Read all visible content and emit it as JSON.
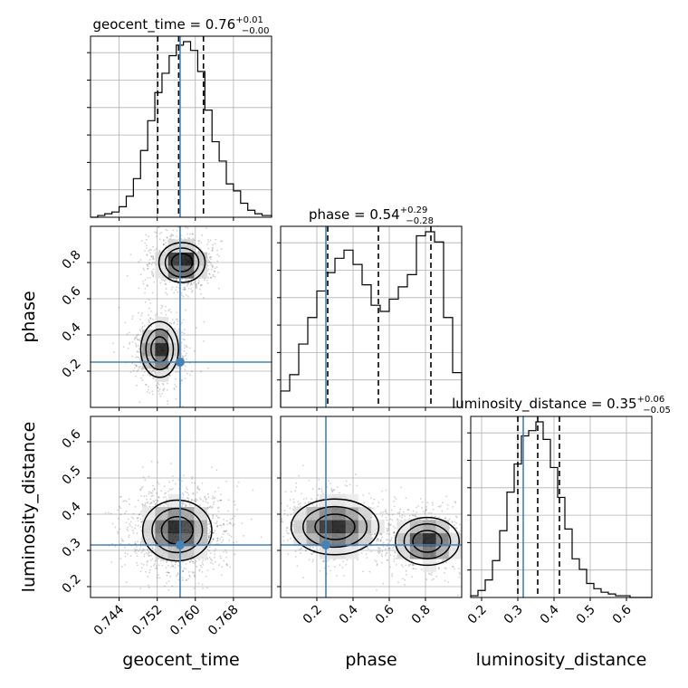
{
  "chart_data": {
    "type": "corner",
    "truth_color": "#4682b4",
    "parameters": [
      {
        "name": "geocent_time",
        "axis_label": "geocent_time",
        "title": {
          "prefix": "geocent_time = 0.76",
          "sup": "+0.01",
          "sub": "−0.00"
        },
        "range": [
          0.738,
          0.776
        ],
        "ticks": [
          0.744,
          0.752,
          0.76,
          0.768
        ],
        "tick_labels": [
          "0.744",
          "0.752",
          "0.760",
          "0.768"
        ],
        "truth": 0.7568,
        "quantiles": [
          0.7521,
          0.7565,
          0.7617
        ],
        "hist_edges": [
          0.738,
          0.7419,
          0.7458,
          0.7497,
          0.7536,
          0.7575,
          0.7614,
          0.7653,
          0.7692,
          0.7731,
          0.776
        ],
        "hist_counts": [
          2,
          9,
          35,
          82,
          100,
          89,
          50,
          22,
          6,
          1
        ],
        "hist_edges_fine": [
          0.738,
          0.7395,
          0.741,
          0.7425,
          0.744,
          0.7455,
          0.747,
          0.7485,
          0.75,
          0.7515,
          0.753,
          0.7545,
          0.756,
          0.7575,
          0.759,
          0.7605,
          0.762,
          0.7635,
          0.765,
          0.7665,
          0.768,
          0.7695,
          0.771,
          0.7725,
          0.774,
          0.776
        ],
        "hist_counts_fine": [
          0,
          1,
          2,
          3,
          6,
          12,
          22,
          38,
          55,
          71,
          82,
          92,
          98,
          100,
          95,
          83,
          61,
          43,
          32,
          19,
          15,
          8,
          4,
          2,
          1
        ]
      },
      {
        "name": "phase",
        "axis_label": "phase",
        "title": {
          "prefix": "phase = 0.54",
          "sup": "+0.29",
          "sub": "−0.28"
        },
        "range": [
          0.0,
          1.0
        ],
        "ticks": [
          0.2,
          0.4,
          0.6,
          0.8
        ],
        "tick_labels": [
          "0.2",
          "0.4",
          "0.6",
          "0.8"
        ],
        "truth": 0.25,
        "quantiles": [
          0.26,
          0.54,
          0.83
        ],
        "hist_edges": [
          0.0,
          0.05,
          0.1,
          0.15,
          0.2,
          0.25,
          0.3,
          0.35,
          0.4,
          0.45,
          0.5,
          0.55,
          0.6,
          0.65,
          0.7,
          0.75,
          0.8,
          0.85,
          0.9,
          0.95,
          1.0
        ],
        "hist_counts": [
          8,
          16,
          31,
          44,
          57,
          66,
          73,
          77,
          70,
          60,
          50,
          47,
          53,
          59,
          65,
          84,
          86,
          81,
          44,
          17
        ]
      },
      {
        "name": "luminosity_distance",
        "axis_label": "luminosity_distance",
        "title": {
          "prefix": "luminosity_distance = 0.35",
          "sup": "+0.06",
          "sub": "−0.05"
        },
        "range": [
          0.17,
          0.67
        ],
        "ticks": [
          0.2,
          0.3,
          0.4,
          0.5,
          0.6
        ],
        "tick_labels": [
          "0.2",
          "0.3",
          "0.4",
          "0.5",
          "0.6"
        ],
        "truth": 0.315,
        "quantiles": [
          0.3,
          0.355,
          0.415
        ],
        "hist_edges": [
          0.17,
          0.19,
          0.21,
          0.23,
          0.25,
          0.27,
          0.29,
          0.31,
          0.33,
          0.35,
          0.37,
          0.39,
          0.41,
          0.43,
          0.45,
          0.47,
          0.49,
          0.51,
          0.53,
          0.55,
          0.57,
          0.59,
          0.61,
          0.63,
          0.65,
          0.67
        ],
        "hist_counts": [
          1,
          4,
          10,
          21,
          38,
          60,
          76,
          92,
          95,
          100,
          90,
          74,
          57,
          39,
          22,
          16,
          8,
          5,
          3,
          2,
          1,
          1,
          0,
          0,
          0
        ]
      }
    ],
    "contour_panels": [
      {
        "x": "geocent_time",
        "y": "phase",
        "modes": [
          {
            "center": [
              0.7572,
              0.8
            ],
            "sd": [
              0.0022,
              0.05
            ],
            "weight": 0.55
          },
          {
            "center": [
              0.7525,
              0.32
            ],
            "sd": [
              0.0018,
              0.07
            ],
            "weight": 0.45
          }
        ]
      },
      {
        "x": "geocent_time",
        "y": "luminosity_distance",
        "modes": [
          {
            "center": [
              0.7562,
              0.355
            ],
            "sd": [
              0.0033,
              0.038
            ],
            "weight": 1.0
          }
        ]
      },
      {
        "x": "phase",
        "y": "luminosity_distance",
        "modes": [
          {
            "center": [
              0.3,
              0.365
            ],
            "sd": [
              0.11,
              0.035
            ],
            "weight": 0.5
          },
          {
            "center": [
              0.81,
              0.325
            ],
            "sd": [
              0.08,
              0.03
            ],
            "weight": 0.5
          }
        ]
      }
    ],
    "grid": true,
    "legend": "none"
  }
}
